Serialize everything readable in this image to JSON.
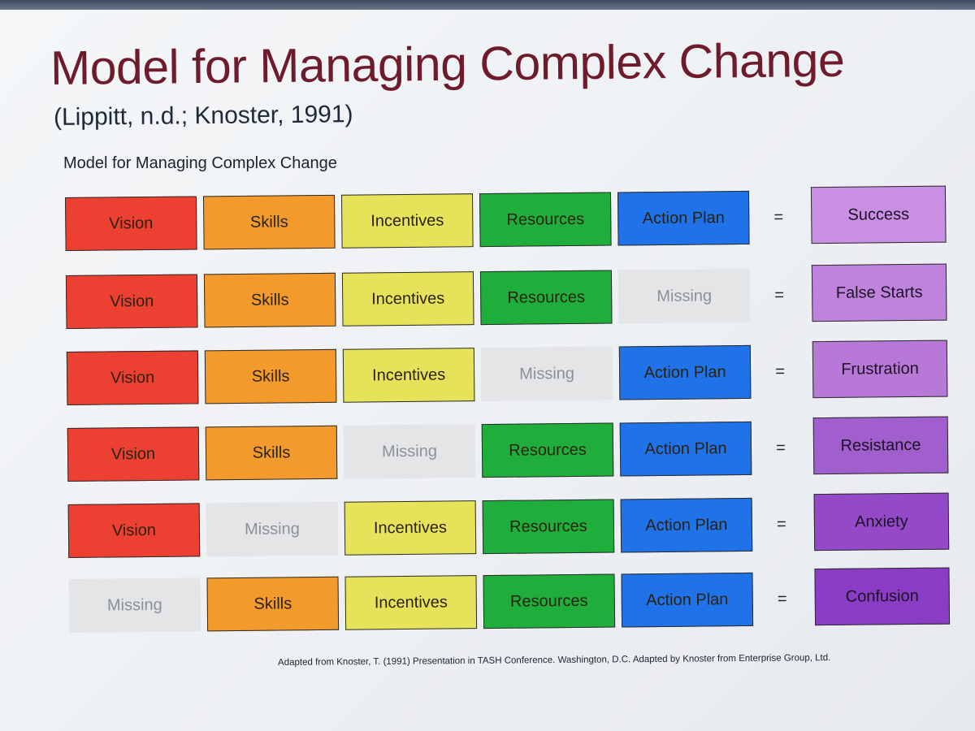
{
  "title": "Model for Managing Complex Change",
  "subtitle": "(Lippitt, n.d.; Knoster, 1991)",
  "diagram_title": "Model for Managing Complex Change",
  "equals_sign": "=",
  "missing_label": "Missing",
  "colors": {
    "Vision": "#ec4032",
    "Skills": "#f29b2c",
    "Incentives": "#e6e35a",
    "Resources": "#1fae3c",
    "Action Plan": "#1f72e8",
    "missing": "#e4e5e7",
    "outcome_light": "#c587e0",
    "outcome_dark": "#8a3cc4",
    "title": "#6e1c2c"
  },
  "rows": [
    {
      "cells": [
        "Vision",
        "Skills",
        "Incentives",
        "Resources",
        "Action Plan"
      ],
      "outcome": "Success",
      "outcome_color": "#c98fe2"
    },
    {
      "cells": [
        "Vision",
        "Skills",
        "Incentives",
        "Resources",
        "Missing"
      ],
      "outcome": "False Starts",
      "outcome_color": "#c083dd"
    },
    {
      "cells": [
        "Vision",
        "Skills",
        "Incentives",
        "Missing",
        "Action Plan"
      ],
      "outcome": "Frustration",
      "outcome_color": "#b878d8"
    },
    {
      "cells": [
        "Vision",
        "Skills",
        "Missing",
        "Resources",
        "Action Plan"
      ],
      "outcome": "Resistance",
      "outcome_color": "#a05fcd"
    },
    {
      "cells": [
        "Vision",
        "Missing",
        "Incentives",
        "Resources",
        "Action Plan"
      ],
      "outcome": "Anxiety",
      "outcome_color": "#9349c8"
    },
    {
      "cells": [
        "Missing",
        "Skills",
        "Incentives",
        "Resources",
        "Action Plan"
      ],
      "outcome": "Confusion",
      "outcome_color": "#8a3cc4"
    }
  ],
  "citation": "Adapted from Knoster, T. (1991) Presentation in TASH Conference. Washington, D.C. Adapted by Knoster from Enterprise Group, Ltd."
}
